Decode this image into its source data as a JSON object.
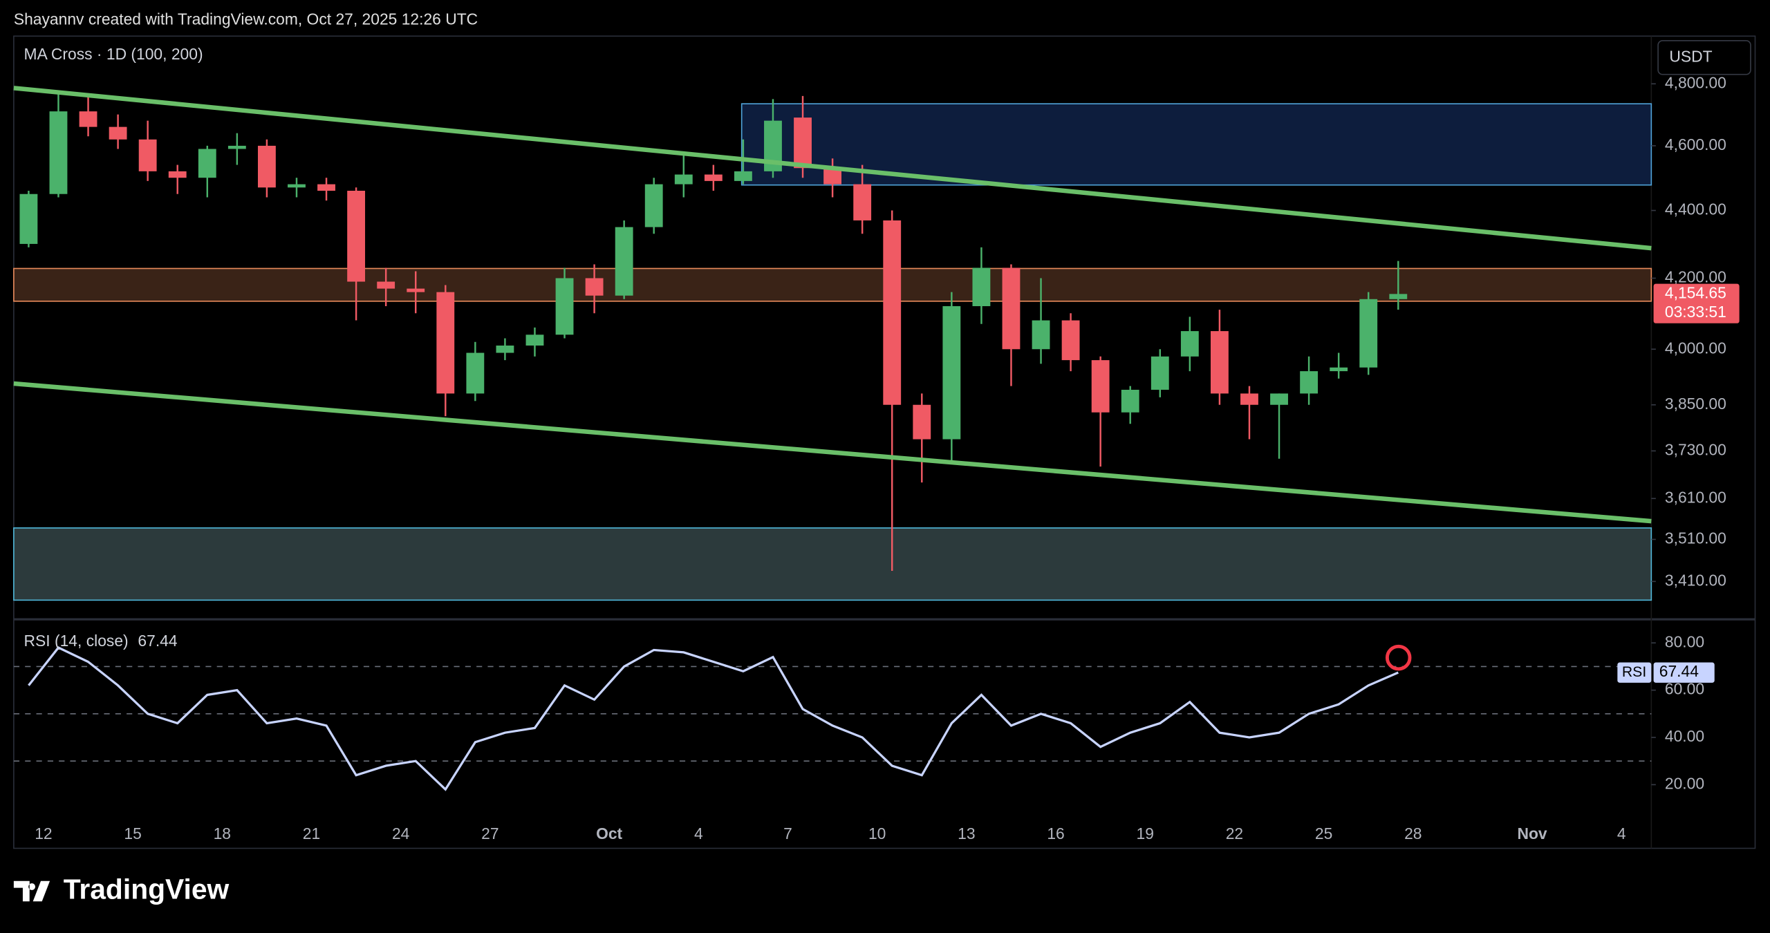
{
  "header": {
    "credit": "Shayannv created with TradingView.com, Oct 27, 2025 12:26 UTC"
  },
  "footer": {
    "logo": "TradingView"
  },
  "chart_data": [
    {
      "type": "candlestick",
      "title": "MA Cross · 1D (100, 200)",
      "currency": "USDT",
      "log_scale": true,
      "grid": false,
      "up_color": "#4bb26b",
      "down_color": "#f05a64",
      "xlim": [
        "2025-09-11",
        "2025-11-05"
      ],
      "x": [
        "2025-09-11",
        "2025-09-12",
        "2025-09-13",
        "2025-09-14",
        "2025-09-15",
        "2025-09-16",
        "2025-09-17",
        "2025-09-18",
        "2025-09-19",
        "2025-09-20",
        "2025-09-21",
        "2025-09-22",
        "2025-09-23",
        "2025-09-24",
        "2025-09-25",
        "2025-09-26",
        "2025-09-27",
        "2025-09-28",
        "2025-09-29",
        "2025-09-30",
        "2025-10-01",
        "2025-10-02",
        "2025-10-03",
        "2025-10-04",
        "2025-10-05",
        "2025-10-06",
        "2025-10-07",
        "2025-10-08",
        "2025-10-09",
        "2025-10-10",
        "2025-10-11",
        "2025-10-12",
        "2025-10-13",
        "2025-10-14",
        "2025-10-15",
        "2025-10-16",
        "2025-10-17",
        "2025-10-18",
        "2025-10-19",
        "2025-10-20",
        "2025-10-21",
        "2025-10-22",
        "2025-10-23",
        "2025-10-24",
        "2025-10-25",
        "2025-10-26",
        "2025-10-27"
      ],
      "open": [
        4300,
        4450,
        4710,
        4660,
        4620,
        4520,
        4500,
        4590,
        4600,
        4470,
        4480,
        4460,
        4190,
        4170,
        4160,
        3880,
        3990,
        4010,
        4040,
        4200,
        4150,
        4350,
        4480,
        4510,
        4490,
        4520,
        4690,
        4530,
        4480,
        4370,
        3850,
        3760,
        4120,
        4230,
        4000,
        4080,
        3970,
        3830,
        3890,
        3980,
        4050,
        3880,
        3850,
        3880,
        3940,
        3950,
        4140
      ],
      "high": [
        4460,
        4770,
        4760,
        4700,
        4680,
        4540,
        4600,
        4640,
        4620,
        4500,
        4500,
        4470,
        4230,
        4220,
        4180,
        4020,
        4030,
        4060,
        4230,
        4240,
        4370,
        4500,
        4580,
        4540,
        4620,
        4750,
        4760,
        4560,
        4540,
        4400,
        3880,
        4160,
        4290,
        4240,
        4200,
        4100,
        3980,
        3900,
        4000,
        4090,
        4110,
        3900,
        3880,
        3980,
        3990,
        4160,
        4250
      ],
      "low": [
        4290,
        4440,
        4630,
        4590,
        4490,
        4450,
        4440,
        4540,
        4440,
        4440,
        4430,
        4080,
        4120,
        4100,
        3820,
        3860,
        3970,
        3980,
        4030,
        4100,
        4140,
        4330,
        4440,
        4460,
        4480,
        4500,
        4500,
        4440,
        4330,
        3435,
        3650,
        3700,
        4070,
        3900,
        3960,
        3940,
        3690,
        3800,
        3870,
        3940,
        3850,
        3760,
        3710,
        3850,
        3920,
        3930,
        4110
      ],
      "close": [
        4450,
        4710,
        4660,
        4620,
        4520,
        4500,
        4590,
        4600,
        4470,
        4480,
        4460,
        4190,
        4170,
        4160,
        3880,
        3990,
        4010,
        4040,
        4200,
        4150,
        4350,
        4480,
        4510,
        4490,
        4520,
        4680,
        4530,
        4480,
        4370,
        3850,
        3760,
        4120,
        4230,
        4000,
        4080,
        3970,
        3830,
        3890,
        3980,
        4050,
        3880,
        3850,
        3880,
        3940,
        3950,
        4140,
        4154.65
      ],
      "last_price": 4154.65,
      "last_price_label": "4,154.65",
      "countdown": "03:33:51",
      "ylim": [
        3325,
        4960
      ],
      "yticks": [
        {
          "value": 4800,
          "label": "4,800.00"
        },
        {
          "value": 4600,
          "label": "4,600.00"
        },
        {
          "value": 4400,
          "label": "4,400.00"
        },
        {
          "value": 4200,
          "label": "4,200.00"
        },
        {
          "value": 4000,
          "label": "4,000.00"
        },
        {
          "value": 3850,
          "label": "3,850.00"
        },
        {
          "value": 3730,
          "label": "3,730.00"
        },
        {
          "value": 3610,
          "label": "3,610.00"
        },
        {
          "value": 3510,
          "label": "3,510.00"
        },
        {
          "value": 3410,
          "label": "3,410.00"
        }
      ]
    },
    {
      "type": "line",
      "title": "RSI (14, close)",
      "legend": "RSI",
      "color": "#c8d4ff",
      "xlim": [
        "2025-09-11",
        "2025-11-05"
      ],
      "x": [
        "2025-09-11",
        "2025-09-12",
        "2025-09-13",
        "2025-09-14",
        "2025-09-15",
        "2025-09-16",
        "2025-09-17",
        "2025-09-18",
        "2025-09-19",
        "2025-09-20",
        "2025-09-21",
        "2025-09-22",
        "2025-09-23",
        "2025-09-24",
        "2025-09-25",
        "2025-09-26",
        "2025-09-27",
        "2025-09-28",
        "2025-09-29",
        "2025-09-30",
        "2025-10-01",
        "2025-10-02",
        "2025-10-03",
        "2025-10-04",
        "2025-10-05",
        "2025-10-06",
        "2025-10-07",
        "2025-10-08",
        "2025-10-09",
        "2025-10-10",
        "2025-10-11",
        "2025-10-12",
        "2025-10-13",
        "2025-10-14",
        "2025-10-15",
        "2025-10-16",
        "2025-10-17",
        "2025-10-18",
        "2025-10-19",
        "2025-10-20",
        "2025-10-21",
        "2025-10-22",
        "2025-10-23",
        "2025-10-24",
        "2025-10-25",
        "2025-10-26",
        "2025-10-27"
      ],
      "values": [
        62,
        78,
        72,
        62,
        50,
        46,
        58,
        60,
        46,
        48,
        45,
        24,
        28,
        30,
        18,
        38,
        42,
        44,
        62,
        56,
        70,
        77,
        76,
        72,
        68,
        74,
        52,
        45,
        40,
        28,
        24,
        46,
        58,
        45,
        50,
        46,
        36,
        42,
        46,
        55,
        42,
        40,
        42,
        50,
        54,
        62,
        67.44
      ],
      "levels": [
        70,
        50,
        30
      ],
      "ylim": [
        5,
        89.5
      ],
      "yticks": [
        {
          "value": 80,
          "label": "80.00"
        },
        {
          "value": 60,
          "label": "60.00"
        },
        {
          "value": 40,
          "label": "40.00"
        },
        {
          "value": 20,
          "label": "20.00"
        }
      ],
      "xticks": [
        {
          "value": "2025-09-12",
          "label": "12"
        },
        {
          "value": "2025-09-15",
          "label": "15"
        },
        {
          "value": "2025-09-18",
          "label": "18"
        },
        {
          "value": "2025-09-21",
          "label": "21"
        },
        {
          "value": "2025-09-24",
          "label": "24"
        },
        {
          "value": "2025-09-27",
          "label": "27"
        },
        {
          "value": "2025-10-01",
          "label": "Oct"
        },
        {
          "value": "2025-10-04",
          "label": "4"
        },
        {
          "value": "2025-10-07",
          "label": "7"
        },
        {
          "value": "2025-10-10",
          "label": "10"
        },
        {
          "value": "2025-10-13",
          "label": "13"
        },
        {
          "value": "2025-10-16",
          "label": "16"
        },
        {
          "value": "2025-10-19",
          "label": "19"
        },
        {
          "value": "2025-10-22",
          "label": "22"
        },
        {
          "value": "2025-10-25",
          "label": "25"
        },
        {
          "value": "2025-10-28",
          "label": "28"
        },
        {
          "value": "2025-11-01",
          "label": "Nov"
        },
        {
          "value": "2025-11-04",
          "label": "4"
        }
      ]
    }
  ]
}
